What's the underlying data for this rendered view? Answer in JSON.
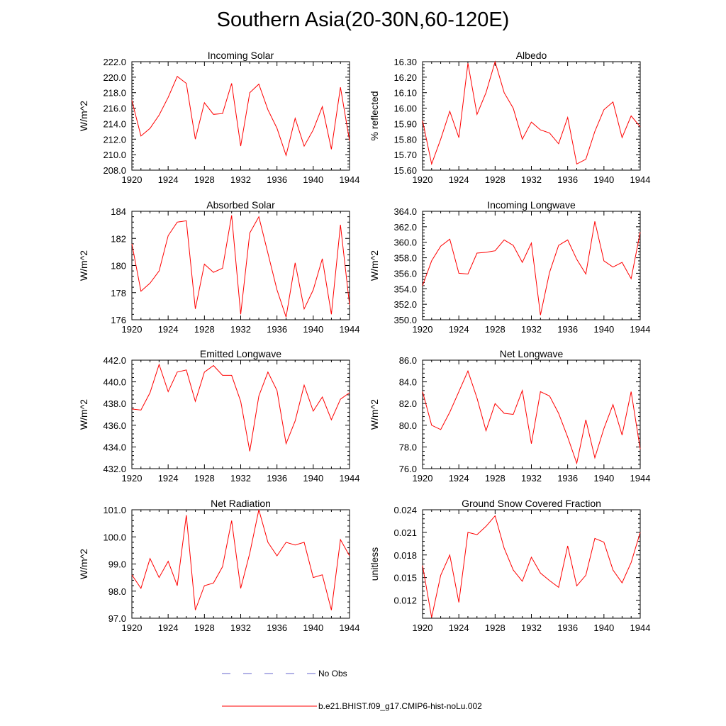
{
  "title": "Southern Asia(20-30N,60-120E)",
  "colors": {
    "model": "#ff0000",
    "obs": "#6666cc",
    "axis": "#000000"
  },
  "legend": {
    "obs_label": "No Obs",
    "model_label": "b.e21.BHIST.f09_g17.CMIP6-hist-noLu.002"
  },
  "chart_data": [
    {
      "type": "line",
      "title": "Incoming Solar",
      "ylabel": "W/m^2",
      "xlim": [
        1920,
        1944
      ],
      "ylim": [
        208.0,
        222.0
      ],
      "xticks": [
        "1920",
        "1924",
        "1928",
        "1932",
        "1936",
        "1940",
        "1944"
      ],
      "yticks": [
        "208.0",
        "210.0",
        "212.0",
        "214.0",
        "216.0",
        "218.0",
        "220.0",
        "222.0"
      ],
      "x": [
        1920,
        1921,
        1922,
        1923,
        1924,
        1925,
        1926,
        1927,
        1928,
        1929,
        1930,
        1931,
        1932,
        1933,
        1934,
        1935,
        1936,
        1937,
        1938,
        1939,
        1940,
        1941,
        1942,
        1943,
        1944
      ],
      "values": [
        217.0,
        212.4,
        213.4,
        215.1,
        217.4,
        220.1,
        219.2,
        212.0,
        216.7,
        215.2,
        215.3,
        219.2,
        211.1,
        218.0,
        219.1,
        215.8,
        213.4,
        209.9,
        214.7,
        211.1,
        213.2,
        216.2,
        210.7,
        218.7,
        211.8
      ]
    },
    {
      "type": "line",
      "title": "Albedo",
      "ylabel": "% reflected",
      "xlim": [
        1920,
        1944
      ],
      "ylim": [
        15.6,
        16.3
      ],
      "xticks": [
        "1920",
        "1924",
        "1928",
        "1932",
        "1936",
        "1940",
        "1944"
      ],
      "yticks": [
        "15.60",
        "15.70",
        "15.80",
        "15.90",
        "16.00",
        "16.10",
        "16.20",
        "16.30"
      ],
      "x": [
        1920,
        1921,
        1922,
        1923,
        1924,
        1925,
        1926,
        1927,
        1928,
        1929,
        1930,
        1931,
        1932,
        1933,
        1934,
        1935,
        1936,
        1937,
        1938,
        1939,
        1940,
        1941,
        1942,
        1943,
        1944
      ],
      "values": [
        15.92,
        15.64,
        15.8,
        15.98,
        15.81,
        16.29,
        15.96,
        16.1,
        16.3,
        16.1,
        16.0,
        15.8,
        15.91,
        15.86,
        15.84,
        15.77,
        15.94,
        15.64,
        15.67,
        15.85,
        15.99,
        16.04,
        15.81,
        15.95,
        15.88
      ]
    },
    {
      "type": "line",
      "title": "Absorbed Solar",
      "ylabel": "W/m^2",
      "xlim": [
        1920,
        1944
      ],
      "ylim": [
        176,
        184
      ],
      "xticks": [
        "1920",
        "1924",
        "1928",
        "1932",
        "1936",
        "1940",
        "1944"
      ],
      "yticks": [
        "176",
        "178",
        "180",
        "182",
        "184"
      ],
      "x": [
        1920,
        1921,
        1922,
        1923,
        1924,
        1925,
        1926,
        1927,
        1928,
        1929,
        1930,
        1931,
        1932,
        1933,
        1934,
        1935,
        1936,
        1937,
        1938,
        1939,
        1940,
        1941,
        1942,
        1943,
        1944
      ],
      "values": [
        181.6,
        178.1,
        178.7,
        179.6,
        182.2,
        183.2,
        183.3,
        176.8,
        180.1,
        179.5,
        179.8,
        183.7,
        176.4,
        182.4,
        183.6,
        180.9,
        178.2,
        176.2,
        180.2,
        176.8,
        178.2,
        180.5,
        176.4,
        183.0,
        177.1
      ]
    },
    {
      "type": "line",
      "title": "Incoming Longwave",
      "ylabel": "W/m^2",
      "xlim": [
        1920,
        1944
      ],
      "ylim": [
        350.0,
        364.0
      ],
      "xticks": [
        "1920",
        "1924",
        "1928",
        "1932",
        "1936",
        "1940",
        "1944"
      ],
      "yticks": [
        "350.0",
        "352.0",
        "354.0",
        "356.0",
        "358.0",
        "360.0",
        "362.0",
        "364.0"
      ],
      "x": [
        1920,
        1921,
        1922,
        1923,
        1924,
        1925,
        1926,
        1927,
        1928,
        1929,
        1930,
        1931,
        1932,
        1933,
        1934,
        1935,
        1936,
        1937,
        1938,
        1939,
        1940,
        1941,
        1942,
        1943,
        1944
      ],
      "values": [
        354.4,
        357.6,
        359.5,
        360.4,
        356.0,
        355.9,
        358.6,
        358.7,
        358.9,
        360.3,
        359.6,
        357.4,
        359.9,
        350.6,
        356.1,
        359.6,
        360.3,
        357.8,
        355.9,
        362.7,
        357.6,
        356.8,
        357.4,
        355.3,
        361.3
      ]
    },
    {
      "type": "line",
      "title": "Emitted Longwave",
      "ylabel": "W/m^2",
      "xlim": [
        1920,
        1944
      ],
      "ylim": [
        432.0,
        442.0
      ],
      "xticks": [
        "1920",
        "1924",
        "1928",
        "1932",
        "1936",
        "1940",
        "1944"
      ],
      "yticks": [
        "432.0",
        "434.0",
        "436.0",
        "438.0",
        "440.0",
        "442.0"
      ],
      "x": [
        1920,
        1921,
        1922,
        1923,
        1924,
        1925,
        1926,
        1927,
        1928,
        1929,
        1930,
        1931,
        1932,
        1933,
        1934,
        1935,
        1936,
        1937,
        1938,
        1939,
        1940,
        1941,
        1942,
        1943,
        1944
      ],
      "values": [
        437.5,
        437.4,
        439.0,
        441.6,
        439.1,
        440.9,
        441.1,
        438.2,
        440.9,
        441.5,
        440.6,
        440.6,
        438.2,
        433.6,
        438.7,
        440.9,
        439.2,
        434.3,
        436.4,
        439.7,
        437.3,
        438.6,
        436.5,
        438.4,
        439.0
      ]
    },
    {
      "type": "line",
      "title": "Net Longwave",
      "ylabel": "W/m^2",
      "xlim": [
        1920,
        1944
      ],
      "ylim": [
        76.0,
        86.0
      ],
      "xticks": [
        "1920",
        "1924",
        "1928",
        "1932",
        "1936",
        "1940",
        "1944"
      ],
      "yticks": [
        "76.0",
        "78.0",
        "80.0",
        "82.0",
        "84.0",
        "86.0"
      ],
      "x": [
        1920,
        1921,
        1922,
        1923,
        1924,
        1925,
        1926,
        1927,
        1928,
        1929,
        1930,
        1931,
        1932,
        1933,
        1934,
        1935,
        1936,
        1937,
        1938,
        1939,
        1940,
        1941,
        1942,
        1943,
        1944
      ],
      "values": [
        83.1,
        80.0,
        79.6,
        81.2,
        83.1,
        85.0,
        82.5,
        79.5,
        82.0,
        81.1,
        81.0,
        83.2,
        78.3,
        83.1,
        82.7,
        81.1,
        78.9,
        76.5,
        80.5,
        77.0,
        79.7,
        81.9,
        79.1,
        83.1,
        77.8
      ]
    },
    {
      "type": "line",
      "title": "Net Radiation",
      "ylabel": "W/m^2",
      "xlim": [
        1920,
        1944
      ],
      "ylim": [
        97.0,
        101.0
      ],
      "xticks": [
        "1920",
        "1924",
        "1928",
        "1932",
        "1936",
        "1940",
        "1944"
      ],
      "yticks": [
        "97.0",
        "98.0",
        "99.0",
        "100.0",
        "101.0"
      ],
      "x": [
        1920,
        1921,
        1922,
        1923,
        1924,
        1925,
        1926,
        1927,
        1928,
        1929,
        1930,
        1931,
        1932,
        1933,
        1934,
        1935,
        1936,
        1937,
        1938,
        1939,
        1940,
        1941,
        1942,
        1943,
        1944
      ],
      "values": [
        98.6,
        98.1,
        99.2,
        98.5,
        99.1,
        98.2,
        100.8,
        97.3,
        98.2,
        98.3,
        98.9,
        100.6,
        98.1,
        99.4,
        101.0,
        99.8,
        99.3,
        99.8,
        99.7,
        99.8,
        98.5,
        98.6,
        97.3,
        99.9,
        99.3
      ]
    },
    {
      "type": "line",
      "title": "Ground Snow Covered Fraction",
      "ylabel": "unitless",
      "xlim": [
        1920,
        1944
      ],
      "ylim": [
        0.0096,
        0.024
      ],
      "xticks": [
        "1920",
        "1924",
        "1928",
        "1932",
        "1936",
        "1940",
        "1944"
      ],
      "ytick_values": [
        0.012,
        0.015,
        0.018,
        0.021,
        0.024
      ],
      "yticks": [
        "0.012",
        "0.015",
        "0.018",
        "0.021",
        "0.024"
      ],
      "x": [
        1920,
        1921,
        1922,
        1923,
        1924,
        1925,
        1926,
        1927,
        1928,
        1929,
        1930,
        1931,
        1932,
        1933,
        1934,
        1935,
        1936,
        1937,
        1938,
        1939,
        1940,
        1941,
        1942,
        1943,
        1944
      ],
      "values": [
        0.0166,
        0.0097,
        0.0153,
        0.018,
        0.0117,
        0.021,
        0.0207,
        0.0218,
        0.0232,
        0.0189,
        0.016,
        0.0145,
        0.0177,
        0.0156,
        0.0146,
        0.0137,
        0.0192,
        0.0139,
        0.0153,
        0.0202,
        0.0197,
        0.016,
        0.0143,
        0.017,
        0.021
      ]
    }
  ]
}
